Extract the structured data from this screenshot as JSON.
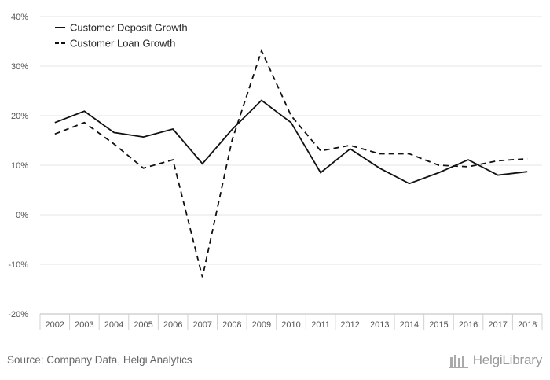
{
  "chart_data": {
    "type": "line",
    "x": [
      "2002",
      "2003",
      "2004",
      "2005",
      "2006",
      "2007",
      "2008",
      "2009",
      "2010",
      "2011",
      "2012",
      "2013",
      "2014",
      "2015",
      "2016",
      "2017",
      "2018"
    ],
    "series": [
      {
        "name": "Customer Deposit Growth",
        "dash": "solid",
        "values": [
          18.6,
          20.9,
          16.6,
          15.7,
          17.3,
          10.3,
          17.2,
          23.1,
          18.6,
          8.5,
          13.3,
          9.4,
          6.3,
          8.5,
          11.1,
          8.0,
          8.7
        ]
      },
      {
        "name": "Customer Loan Growth",
        "dash": "dashed",
        "values": [
          16.3,
          18.6,
          14.3,
          9.4,
          11.1,
          -12.6,
          15.0,
          33.1,
          20.0,
          12.9,
          14.0,
          12.3,
          12.3,
          10.0,
          9.7,
          10.9,
          11.3
        ]
      }
    ],
    "yticks": [
      "40%",
      "30%",
      "20%",
      "10%",
      "0%",
      "-10%",
      "-20%"
    ],
    "ylim": [
      -20,
      40
    ],
    "grid": true,
    "legend_position": "top-left",
    "line_color": "#111111",
    "grid_color": "#e6e6e6"
  },
  "footer": {
    "source": "Source: Company Data, Helgi Analytics",
    "brand": "HelgiLibrary"
  }
}
